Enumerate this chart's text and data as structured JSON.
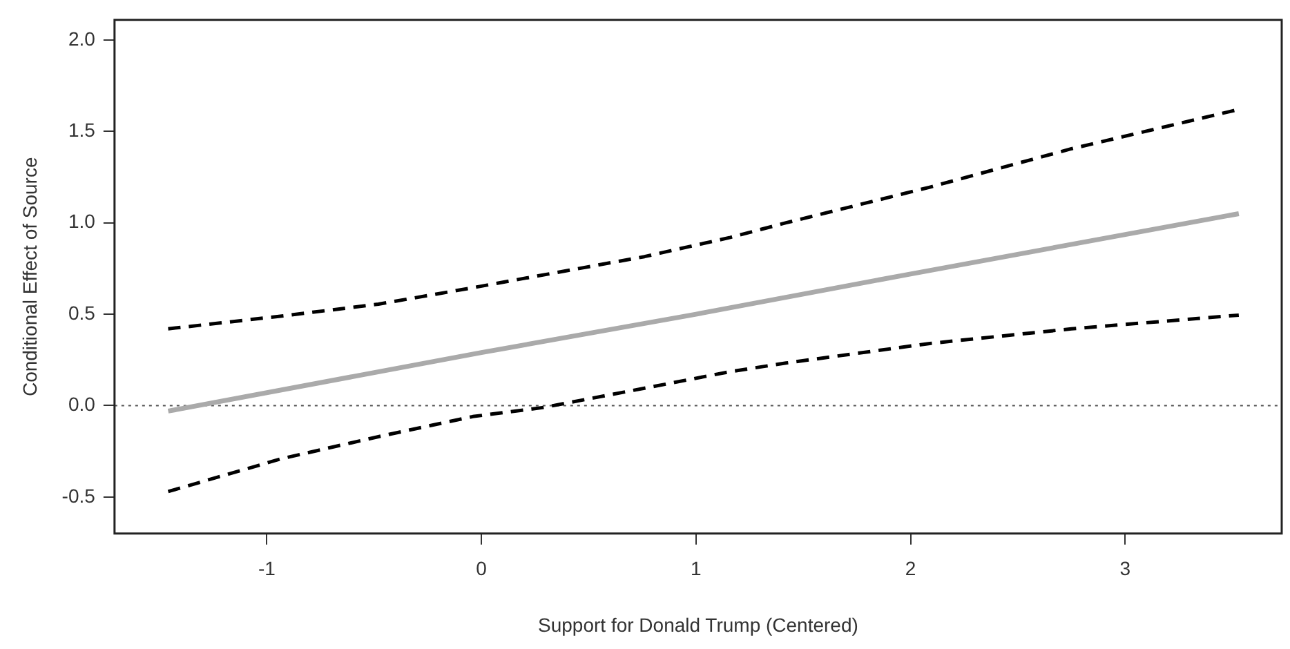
{
  "chart_data": {
    "type": "line",
    "xlabel": "Support for Donald Trump (Centered)",
    "ylabel": "Conditional Effect of Source",
    "xlim": [
      -1.71,
      3.73
    ],
    "ylim": [
      -0.7,
      2.11
    ],
    "xticks": [
      -1,
      0,
      1,
      2,
      3
    ],
    "yticks": [
      {
        "value": -0.5,
        "label": "-0.5"
      },
      {
        "value": 0,
        "label": "0.0"
      },
      {
        "value": 0.5,
        "label": "0.5"
      },
      {
        "value": 1,
        "label": "1.0"
      },
      {
        "value": 1.5,
        "label": "1.5"
      },
      {
        "value": 2,
        "label": "2.0"
      }
    ],
    "grid": false,
    "legend": false,
    "marker": "none",
    "ref_lines": [
      {
        "axis": "y",
        "value": 0,
        "color": "#555555",
        "line_style": "dotted"
      }
    ],
    "series": [
      {
        "color": "#aaaaaa",
        "line_style": "solid",
        "x": [
          -1.46,
          0,
          1,
          2,
          3.53
        ],
        "values": [
          -0.03,
          0.29,
          0.5,
          0.72,
          1.05
        ]
      },
      {
        "color": "#000000",
        "line_style": "dashed",
        "x": [
          -1.46,
          -0.93,
          -0.48,
          -0.04,
          0.76,
          1.16,
          1.42,
          2.09,
          2.75,
          3.53
        ],
        "values": [
          0.42,
          0.49,
          0.555,
          0.645,
          0.815,
          0.92,
          1.0,
          1.195,
          1.405,
          1.62
        ]
      },
      {
        "color": "#000000",
        "line_style": "dashed",
        "x": [
          -1.46,
          -0.93,
          -0.48,
          -0.04,
          0.29,
          0.76,
          1.16,
          1.42,
          2.09,
          2.75,
          3.53
        ],
        "values": [
          -0.47,
          -0.29,
          -0.17,
          -0.06,
          -0.01,
          0.095,
          0.186,
          0.233,
          0.34,
          0.42,
          0.495
        ]
      }
    ]
  }
}
